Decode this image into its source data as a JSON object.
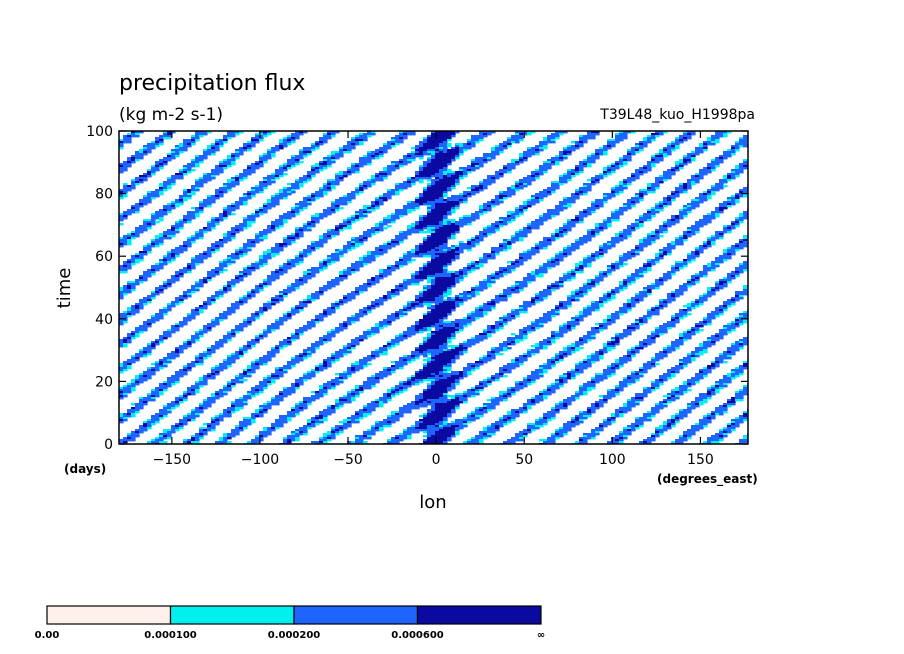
{
  "chart_data": {
    "type": "heatmap",
    "title": "precipitation flux",
    "units": "(kg m-2 s-1)",
    "run_label": "T39L48_kuo_H1998pa",
    "xlabel": "lon",
    "ylabel": "time",
    "x_unit": "(degrees_east)",
    "y_unit": "(days)",
    "xlim": [
      -180,
      177
    ],
    "ylim": [
      0,
      100
    ],
    "x_ticks": [
      -150,
      -100,
      -50,
      0,
      50,
      100,
      150
    ],
    "y_ticks": [
      0,
      20,
      40,
      60,
      80,
      100
    ],
    "x_tick_labels": [
      "−150",
      "−100",
      "−50",
      "0",
      "50",
      "100",
      "150"
    ],
    "y_tick_labels": [
      "0",
      "20",
      "40",
      "60",
      "80",
      "100"
    ],
    "levels": [
      0.0,
      0.0001,
      0.0002,
      0.0006
    ],
    "level_labels": [
      "0.00",
      "0.000100",
      "0.000200",
      "0.000600",
      "∞"
    ],
    "level_colors": [
      "#fff0ec",
      "#00f0f0",
      "#1e64ff",
      "#0a0aa0"
    ],
    "background_color": "#ffffff",
    "features": {
      "stationary_band_lon": 0,
      "stationary_band_time_range": [
        0,
        100
      ],
      "eastward_streak_slope_deg_per_day": 2.5,
      "eastward_streak_lat_spacing_days": 8
    }
  }
}
